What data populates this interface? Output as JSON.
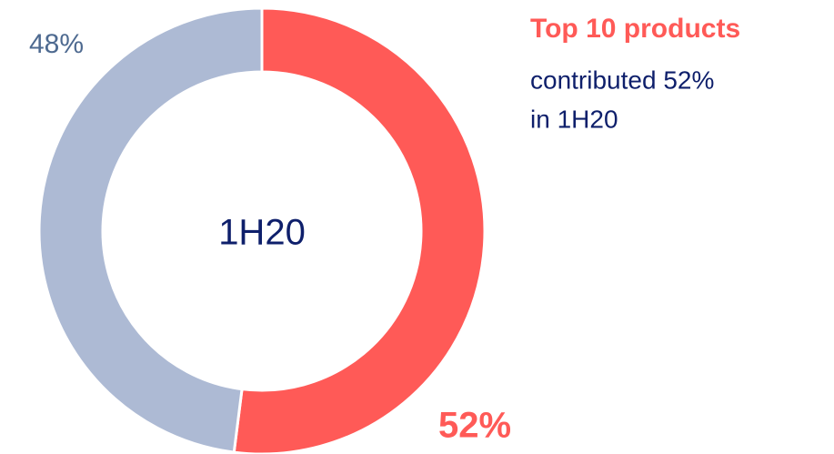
{
  "chart_data": {
    "type": "donut",
    "center_label": "1H20",
    "values": [
      52,
      48
    ],
    "value_labels": [
      "52%",
      "48%"
    ],
    "colors": [
      "#ff5a57",
      "#adbad4"
    ],
    "annotation": {
      "title": "Top 10 products",
      "lines": [
        "contributed 52%",
        "in 1H20"
      ]
    }
  }
}
